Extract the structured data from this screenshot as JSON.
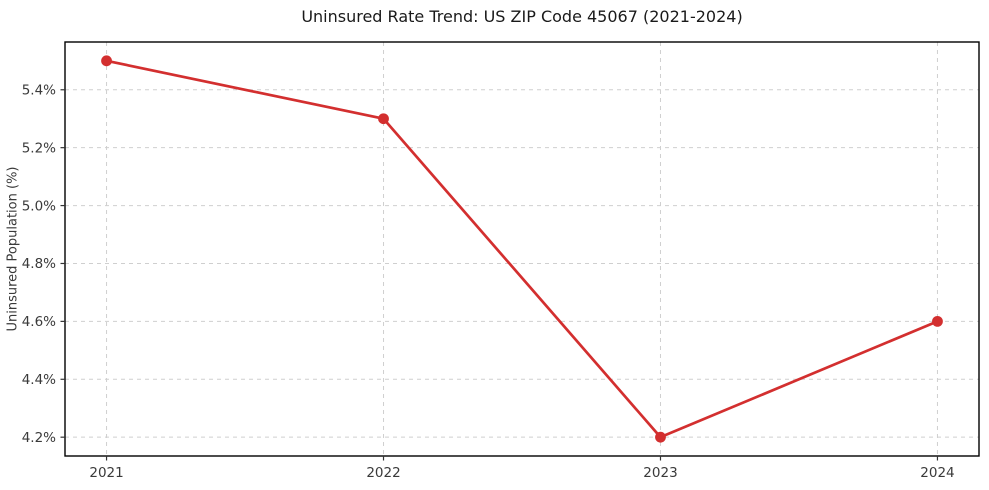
{
  "chart_data": {
    "type": "line",
    "title": "Uninsured Rate Trend: US ZIP Code 45067 (2021-2024)",
    "xlabel": "",
    "ylabel": "Uninsured Population (%)",
    "x": [
      2021,
      2022,
      2023,
      2024
    ],
    "series": [
      {
        "name": "Uninsured rate",
        "values": [
          5.5,
          5.3,
          4.2,
          4.6
        ],
        "color": "#d32f2f",
        "marker": "circle"
      }
    ],
    "xlim": [
      2020.85,
      2024.15
    ],
    "ylim": [
      4.135,
      5.565
    ],
    "xticks": {
      "values": [
        2021,
        2022,
        2023,
        2024
      ],
      "labels": [
        "2021",
        "2022",
        "2023",
        "2024"
      ]
    },
    "yticks": {
      "values": [
        4.2,
        4.4,
        4.6,
        4.8,
        5.0,
        5.2,
        5.4
      ],
      "labels": [
        "4.2%",
        "4.4%",
        "4.6%",
        "4.8%",
        "5.0%",
        "5.2%",
        "5.4%"
      ]
    },
    "grid": true,
    "grid_style": "dashed",
    "legend": null
  },
  "style": {
    "line_color": "#d32f2f",
    "marker_color": "#d32f2f",
    "grid_color": "#cfcfcf",
    "spine_color": "#000000",
    "tick_color": "#333333",
    "tick_label_color": "#3a3a3a",
    "title_color": "#1a1a1a",
    "background_color": "#ffffff"
  }
}
